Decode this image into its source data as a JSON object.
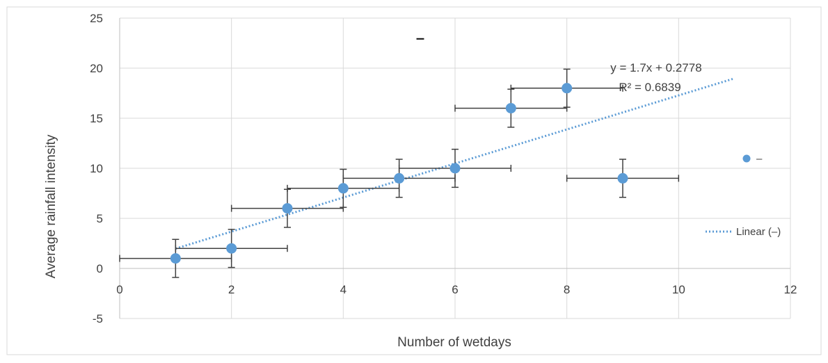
{
  "chart_data": {
    "type": "scatter",
    "title": "–",
    "xlabel": "Number of wetdays",
    "ylabel": "Average rainfall intensity",
    "xlim": [
      0,
      12
    ],
    "ylim": [
      -5,
      25
    ],
    "x_ticks": [
      0,
      2,
      4,
      6,
      8,
      10,
      12
    ],
    "y_ticks": [
      -5,
      0,
      5,
      10,
      15,
      20,
      25
    ],
    "grid": true,
    "series": [
      {
        "name": "–",
        "color": "#5b9bd5",
        "points": [
          {
            "x": 1,
            "y": 1
          },
          {
            "x": 2,
            "y": 2
          },
          {
            "x": 3,
            "y": 6
          },
          {
            "x": 4,
            "y": 8
          },
          {
            "x": 5,
            "y": 9
          },
          {
            "x": 6,
            "y": 10
          },
          {
            "x": 7,
            "y": 16
          },
          {
            "x": 8,
            "y": 18
          },
          {
            "x": 9,
            "y": 9
          }
        ],
        "x_error": 1,
        "y_error": 1.9
      }
    ],
    "trendline": {
      "name": "Linear (–)",
      "type": "linear",
      "slope": 1.7,
      "intercept": 0.2778,
      "x_range": [
        1,
        11
      ],
      "color": "#5b9bd5",
      "equation_label": "y = 1.7x + 0.2778",
      "r2_label": "R² = 0.6839"
    },
    "legend": {
      "placement": "right",
      "entries": [
        "–",
        "Linear (–)"
      ]
    }
  }
}
